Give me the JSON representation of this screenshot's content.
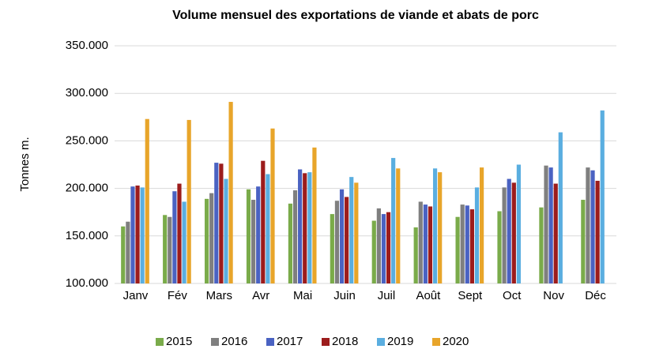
{
  "chart_data": {
    "type": "bar",
    "title": "Volume mensuel des exportations de viande et abats de porc",
    "y_label": "Tonnes m.",
    "categories": [
      "Janv",
      "Fév",
      "Mars",
      "Avr",
      "Mai",
      "Juin",
      "Juil",
      "Août",
      "Sept",
      "Oct",
      "Nov",
      "Déc"
    ],
    "series": [
      {
        "name": "2015",
        "color": "#7aab4a",
        "values": [
          160000,
          172000,
          189000,
          199000,
          184000,
          173000,
          166000,
          159000,
          170000,
          176000,
          180000,
          188000
        ]
      },
      {
        "name": "2016",
        "color": "#7f7f7f",
        "values": [
          165000,
          170000,
          195000,
          188000,
          198000,
          187000,
          179000,
          186000,
          183000,
          201000,
          224000,
          222000
        ]
      },
      {
        "name": "2017",
        "color": "#4a62c2",
        "values": [
          202000,
          197000,
          227000,
          202000,
          220000,
          199000,
          173000,
          183000,
          182000,
          210000,
          222000,
          219000
        ]
      },
      {
        "name": "2018",
        "color": "#9c1c1c",
        "values": [
          203000,
          205000,
          226000,
          229000,
          216000,
          191000,
          175000,
          181000,
          178000,
          206000,
          205000,
          208000
        ]
      },
      {
        "name": "2019",
        "color": "#5aaee0",
        "values": [
          201000,
          186000,
          210000,
          215000,
          217000,
          212000,
          232000,
          221000,
          201000,
          225000,
          259000,
          282000
        ]
      },
      {
        "name": "2020",
        "color": "#e8a52a",
        "values": [
          273000,
          272000,
          291000,
          263000,
          243000,
          206000,
          221000,
          217000,
          222000,
          null,
          null,
          null
        ]
      }
    ],
    "ylim": [
      100000,
      350000
    ],
    "yticks": [
      {
        "value": 100000,
        "label": "100.000"
      },
      {
        "value": 150000,
        "label": "150.000"
      },
      {
        "value": 200000,
        "label": "200.000"
      },
      {
        "value": 250000,
        "label": "250.000"
      },
      {
        "value": 300000,
        "label": "300.000"
      },
      {
        "value": 350000,
        "label": "350.000"
      }
    ],
    "grid": true,
    "legend": "bottom"
  }
}
